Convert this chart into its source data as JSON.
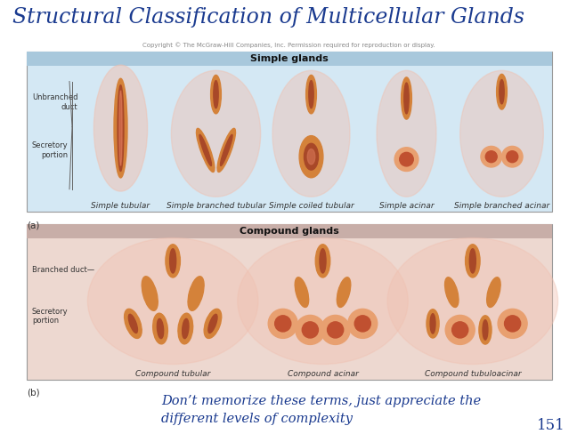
{
  "title": "Structural Classification of Multicellular Glands",
  "title_color": "#1A3A8F",
  "title_fontsize": 17,
  "background_color": "#FFFFFF",
  "panel_a_label": "(a)",
  "panel_b_label": "(b)",
  "panel_a_title": "Simple glands",
  "panel_b_title": "Compound glands",
  "panel_a_items": [
    "Simple tubular",
    "Simple branched tubular",
    "Simple coiled tubular",
    "Simple acinar",
    "Simple branched acinar"
  ],
  "panel_b_items": [
    "Compound tubular",
    "Compound acinar",
    "Compound tubuloacinar"
  ],
  "panel_a_bg": "#D4E8F4",
  "panel_b_bg": "#EDD8D0",
  "panel_a_header_bg": "#A8C8DC",
  "panel_b_header_bg": "#C8AEA8",
  "panel_border_color": "#999999",
  "copyright_text": "Copyright © The McGraw-Hill Companies, Inc. Permission required for reproduction or display.",
  "copyright_color": "#888888",
  "copyright_fontsize": 5,
  "footer_text": "Don’t memorize these terms, just appreciate the\ndifferent levels of complexity",
  "footer_color": "#1A3A8F",
  "footer_fontsize": 10.5,
  "page_number": "151",
  "page_number_color": "#1A3A8F",
  "page_number_fontsize": 12,
  "gland_label_a_left": [
    "Unbranched\nduct",
    "Secretory\nportion"
  ],
  "gland_label_b_left": [
    "Branched duct—",
    "Secretory\nportion"
  ],
  "label_color": "#333333",
  "label_fontsize": 6,
  "item_label_fontsize": 6.5,
  "panel_title_fontsize": 8,
  "panel_title_color": "#111111",
  "outer_glow": "#F0C0B0",
  "duct_color": "#D4823A",
  "duct_inner": "#A84828",
  "acinar_color": "#E8A070",
  "acinar_inner": "#C05030"
}
